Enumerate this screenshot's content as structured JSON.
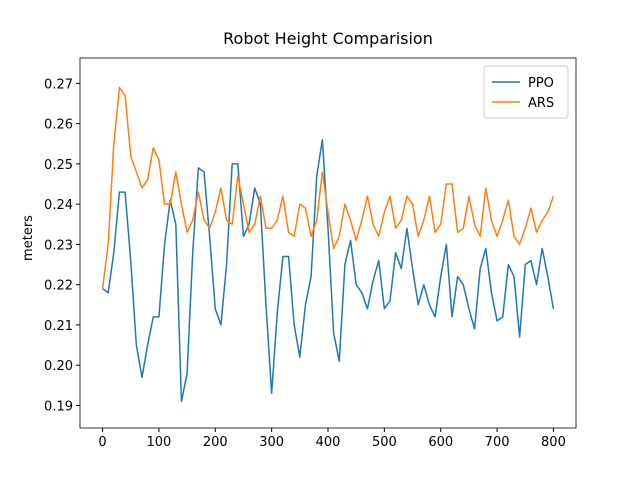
{
  "chart_data": {
    "type": "line",
    "title": "Robot Height Comparision",
    "y_label": "meters",
    "x": [
      0,
      10,
      20,
      30,
      40,
      50,
      60,
      70,
      80,
      90,
      100,
      110,
      120,
      130,
      140,
      150,
      160,
      170,
      180,
      190,
      200,
      210,
      220,
      230,
      240,
      250,
      260,
      270,
      280,
      290,
      300,
      310,
      320,
      330,
      340,
      350,
      360,
      370,
      380,
      390,
      400,
      410,
      420,
      430,
      440,
      450,
      460,
      470,
      480,
      490,
      500,
      510,
      520,
      530,
      540,
      550,
      560,
      570,
      580,
      590,
      600,
      610,
      620,
      630,
      640,
      650,
      660,
      670,
      680,
      690,
      700,
      710,
      720,
      730,
      740,
      750,
      760,
      770,
      780,
      790,
      800
    ],
    "series": [
      {
        "name": "PPO",
        "color": "#1f77b4",
        "values": [
          0.219,
          0.218,
          0.228,
          0.243,
          0.243,
          0.226,
          0.205,
          0.197,
          0.205,
          0.212,
          0.212,
          0.23,
          0.241,
          0.235,
          0.191,
          0.198,
          0.228,
          0.249,
          0.248,
          0.232,
          0.214,
          0.21,
          0.225,
          0.25,
          0.25,
          0.232,
          0.235,
          0.244,
          0.24,
          0.215,
          0.193,
          0.213,
          0.227,
          0.227,
          0.21,
          0.202,
          0.215,
          0.222,
          0.247,
          0.256,
          0.234,
          0.208,
          0.201,
          0.225,
          0.231,
          0.22,
          0.218,
          0.214,
          0.221,
          0.226,
          0.214,
          0.216,
          0.228,
          0.224,
          0.234,
          0.224,
          0.215,
          0.22,
          0.215,
          0.212,
          0.222,
          0.23,
          0.212,
          0.222,
          0.22,
          0.214,
          0.209,
          0.224,
          0.229,
          0.218,
          0.211,
          0.212,
          0.225,
          0.222,
          0.207,
          0.225,
          0.226,
          0.22,
          0.229,
          0.222,
          0.214
        ]
      },
      {
        "name": "ARS",
        "color": "#ff7f0e",
        "values": [
          0.219,
          0.23,
          0.255,
          0.269,
          0.267,
          0.252,
          0.248,
          0.244,
          0.246,
          0.254,
          0.251,
          0.24,
          0.24,
          0.248,
          0.24,
          0.233,
          0.236,
          0.243,
          0.236,
          0.234,
          0.238,
          0.244,
          0.236,
          0.235,
          0.247,
          0.24,
          0.233,
          0.235,
          0.242,
          0.234,
          0.234,
          0.236,
          0.242,
          0.233,
          0.232,
          0.24,
          0.239,
          0.232,
          0.236,
          0.248,
          0.238,
          0.229,
          0.232,
          0.24,
          0.236,
          0.231,
          0.236,
          0.242,
          0.235,
          0.232,
          0.238,
          0.242,
          0.234,
          0.236,
          0.242,
          0.24,
          0.232,
          0.236,
          0.242,
          0.233,
          0.235,
          0.245,
          0.245,
          0.233,
          0.234,
          0.242,
          0.235,
          0.232,
          0.244,
          0.236,
          0.232,
          0.236,
          0.241,
          0.232,
          0.23,
          0.234,
          0.239,
          0.233,
          0.236,
          0.238,
          0.242
        ]
      }
    ],
    "xlim": [
      -40,
      840
    ],
    "ylim": [
      0.1844,
      0.2763
    ],
    "xticks": [
      0,
      100,
      200,
      300,
      400,
      500,
      600,
      700,
      800
    ],
    "yticks": [
      0.19,
      {
        "value": 0.2,
        "label": "0.20"
      },
      0.21,
      0.22,
      0.23,
      0.24,
      0.25,
      0.26,
      0.27
    ],
    "legend": "upper right"
  }
}
